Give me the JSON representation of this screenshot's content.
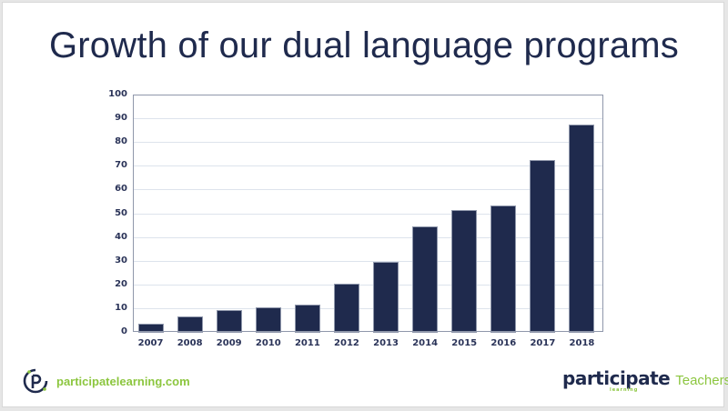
{
  "slide": {
    "title": "Growth of our dual language programs",
    "footer": {
      "website": "participatelearning.com",
      "brand_name": "participate",
      "brand_sub": "learning",
      "brand_suffix": "Teachers"
    }
  },
  "colors": {
    "bar": "#1f2a4d",
    "title": "#1f2a4d",
    "accent_green": "#8cc63f",
    "gridline": "#dde3ec",
    "axis": "#8f97ab"
  },
  "chart_data": {
    "type": "bar",
    "title": "Growth of our dual language programs",
    "xlabel": "",
    "ylabel": "",
    "categories": [
      "2007",
      "2008",
      "2009",
      "2010",
      "2011",
      "2012",
      "2013",
      "2014",
      "2015",
      "2016",
      "2017",
      "2018"
    ],
    "values": [
      3,
      6,
      9,
      10,
      11,
      20,
      29,
      44,
      51,
      53,
      72,
      87
    ],
    "ylim": [
      0,
      100
    ],
    "yticks": [
      0,
      10,
      20,
      30,
      40,
      50,
      60,
      70,
      80,
      90,
      100
    ],
    "grid": true,
    "legend": null
  }
}
